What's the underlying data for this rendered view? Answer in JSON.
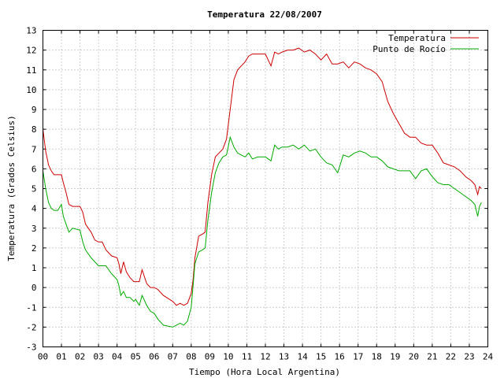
{
  "chart_data": {
    "type": "line",
    "title": "Temperatura 22/08/2007",
    "xlabel": "Tiempo (Hora Local Argentina)",
    "ylabel": "Temperatura (Grados Celsius)",
    "xlim": [
      0,
      24
    ],
    "ylim": [
      -3,
      13
    ],
    "x_ticks": [
      "00",
      "01",
      "02",
      "03",
      "04",
      "05",
      "06",
      "07",
      "08",
      "09",
      "10",
      "11",
      "12",
      "13",
      "14",
      "15",
      "16",
      "17",
      "18",
      "19",
      "20",
      "21",
      "22",
      "23",
      "24"
    ],
    "y_ticks": [
      "-3",
      "-2",
      "-1",
      "0",
      "1",
      "2",
      "3",
      "4",
      "5",
      "6",
      "7",
      "8",
      "9",
      "10",
      "11",
      "12",
      "13"
    ],
    "grid": true,
    "legend_position": "top-right",
    "series": [
      {
        "name": "Temperatura",
        "color": "#cc0000",
        "x": [
          0.0,
          0.15,
          0.3,
          0.45,
          0.6,
          0.8,
          1.0,
          1.1,
          1.25,
          1.4,
          1.6,
          2.0,
          2.15,
          2.3,
          2.6,
          2.8,
          3.0,
          3.2,
          3.4,
          3.7,
          4.0,
          4.1,
          4.2,
          4.35,
          4.5,
          4.7,
          4.9,
          5.0,
          5.2,
          5.35,
          5.6,
          5.8,
          6.0,
          6.2,
          6.5,
          7.0,
          7.2,
          7.4,
          7.6,
          7.8,
          8.0,
          8.1,
          8.2,
          8.4,
          8.6,
          8.75,
          8.9,
          9.1,
          9.3,
          9.5,
          9.7,
          9.9,
          10.1,
          10.3,
          10.5,
          10.7,
          10.9,
          11.1,
          11.3,
          11.6,
          12.0,
          12.3,
          12.5,
          12.7,
          12.9,
          13.2,
          13.5,
          13.8,
          14.1,
          14.4,
          14.7,
          15.0,
          15.3,
          15.6,
          15.9,
          16.2,
          16.5,
          16.8,
          17.1,
          17.4,
          17.7,
          18.0,
          18.3,
          18.6,
          18.9,
          19.2,
          19.5,
          19.8,
          20.1,
          20.4,
          20.7,
          21.0,
          21.3,
          21.6,
          21.9,
          22.2,
          22.5,
          22.8,
          23.1,
          23.3,
          23.45,
          23.55,
          23.65
        ],
        "y": [
          8.0,
          6.9,
          6.2,
          5.9,
          5.7,
          5.7,
          5.7,
          5.3,
          4.8,
          4.2,
          4.1,
          4.1,
          3.8,
          3.2,
          2.8,
          2.4,
          2.3,
          2.3,
          1.9,
          1.6,
          1.5,
          1.2,
          0.7,
          1.3,
          0.8,
          0.5,
          0.3,
          0.3,
          0.3,
          0.9,
          0.2,
          0.0,
          0.0,
          -0.1,
          -0.4,
          -0.7,
          -0.9,
          -0.8,
          -0.9,
          -0.8,
          -0.3,
          0.4,
          1.5,
          2.6,
          2.7,
          2.8,
          4.3,
          5.7,
          6.6,
          6.8,
          7.0,
          7.5,
          9.0,
          10.5,
          11.0,
          11.2,
          11.4,
          11.7,
          11.8,
          11.8,
          11.8,
          11.2,
          11.9,
          11.8,
          11.9,
          12.0,
          12.0,
          12.1,
          11.9,
          12.0,
          11.8,
          11.5,
          11.8,
          11.3,
          11.3,
          11.4,
          11.1,
          11.4,
          11.3,
          11.1,
          11.0,
          10.8,
          10.4,
          9.4,
          8.8,
          8.3,
          7.8,
          7.6,
          7.6,
          7.3,
          7.2,
          7.2,
          6.8,
          6.3,
          6.2,
          6.1,
          5.9,
          5.6,
          5.4,
          5.2,
          4.7,
          5.1,
          5.0
        ]
      },
      {
        "name": "Punto de Rocío",
        "color": "#00aa00",
        "x": [
          0.0,
          0.15,
          0.3,
          0.45,
          0.6,
          0.8,
          1.0,
          1.1,
          1.25,
          1.4,
          1.6,
          2.0,
          2.15,
          2.3,
          2.6,
          2.8,
          3.0,
          3.2,
          3.4,
          3.7,
          4.0,
          4.1,
          4.2,
          4.35,
          4.5,
          4.7,
          4.9,
          5.0,
          5.2,
          5.35,
          5.6,
          5.8,
          6.0,
          6.2,
          6.5,
          7.0,
          7.2,
          7.4,
          7.6,
          7.8,
          8.0,
          8.1,
          8.2,
          8.4,
          8.6,
          8.75,
          8.9,
          9.1,
          9.3,
          9.5,
          9.7,
          9.9,
          10.1,
          10.3,
          10.5,
          10.7,
          10.9,
          11.1,
          11.3,
          11.6,
          12.0,
          12.3,
          12.5,
          12.7,
          12.9,
          13.2,
          13.5,
          13.8,
          14.1,
          14.4,
          14.7,
          15.0,
          15.3,
          15.6,
          15.9,
          16.2,
          16.5,
          16.8,
          17.1,
          17.4,
          17.7,
          18.0,
          18.3,
          18.6,
          18.9,
          19.2,
          19.5,
          19.8,
          20.1,
          20.4,
          20.7,
          21.0,
          21.3,
          21.6,
          21.9,
          22.2,
          22.5,
          22.8,
          23.1,
          23.3,
          23.45,
          23.55,
          23.65
        ],
        "y": [
          5.9,
          5.0,
          4.3,
          4.0,
          3.9,
          3.9,
          4.2,
          3.6,
          3.2,
          2.8,
          3.0,
          2.9,
          2.3,
          1.9,
          1.5,
          1.3,
          1.1,
          1.1,
          1.1,
          0.7,
          0.4,
          0.1,
          -0.4,
          -0.2,
          -0.5,
          -0.5,
          -0.7,
          -0.6,
          -0.9,
          -0.4,
          -0.9,
          -1.2,
          -1.3,
          -1.6,
          -1.9,
          -2.0,
          -1.9,
          -1.8,
          -1.9,
          -1.7,
          -1.0,
          0.1,
          1.2,
          1.8,
          1.9,
          2.0,
          3.4,
          4.8,
          5.8,
          6.3,
          6.6,
          6.7,
          7.6,
          7.1,
          6.8,
          6.7,
          6.6,
          6.8,
          6.5,
          6.6,
          6.6,
          6.4,
          7.2,
          7.0,
          7.1,
          7.1,
          7.2,
          7.0,
          7.2,
          6.9,
          7.0,
          6.6,
          6.3,
          6.2,
          5.8,
          6.7,
          6.6,
          6.8,
          6.9,
          6.8,
          6.6,
          6.6,
          6.4,
          6.1,
          6.0,
          5.9,
          5.9,
          5.9,
          5.5,
          5.9,
          6.0,
          5.6,
          5.3,
          5.2,
          5.2,
          5.0,
          4.8,
          4.6,
          4.4,
          4.2,
          3.6,
          4.1,
          4.3
        ]
      }
    ]
  }
}
